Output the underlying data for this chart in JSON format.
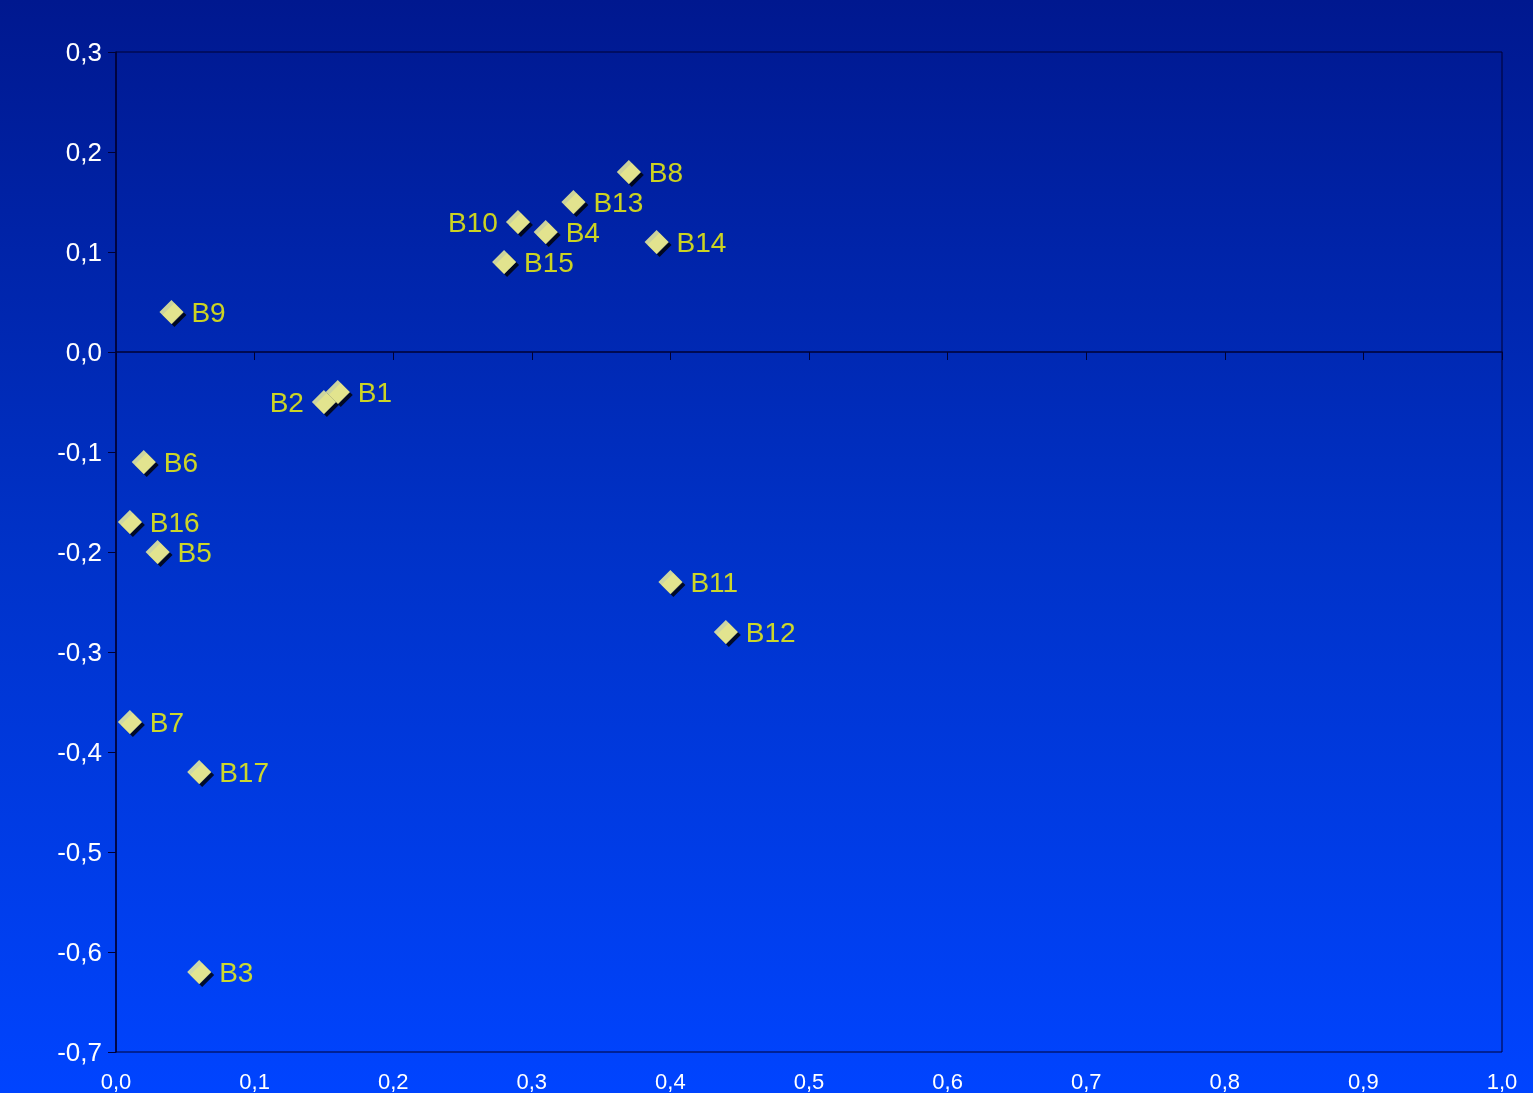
{
  "chart_data": {
    "type": "scatter",
    "marker": "diamond",
    "grid": false,
    "legend": false,
    "xlim": [
      0,
      1
    ],
    "xticks": [
      {
        "value": 0,
        "label": "0,0"
      },
      {
        "value": 0.1,
        "label": "0,1"
      },
      {
        "value": 0.2,
        "label": "0,2"
      },
      {
        "value": 0.3,
        "label": "0,3"
      },
      {
        "value": 0.4,
        "label": "0,4"
      },
      {
        "value": 0.5,
        "label": "0,5"
      },
      {
        "value": 0.6,
        "label": "0,6"
      },
      {
        "value": 0.7,
        "label": "0,7"
      },
      {
        "value": 0.8,
        "label": "0,8"
      },
      {
        "value": 0.9,
        "label": "0,9"
      },
      {
        "value": 1,
        "label": "1,0"
      }
    ],
    "ylim": [
      -0.7,
      0.3
    ],
    "yticks": [
      {
        "value": -0.7,
        "label": "-0,7"
      },
      {
        "value": -0.6,
        "label": "-0,6"
      },
      {
        "value": -0.5,
        "label": "-0,5"
      },
      {
        "value": -0.4,
        "label": "-0,4"
      },
      {
        "value": -0.3,
        "label": "-0,3"
      },
      {
        "value": -0.2,
        "label": "-0,2"
      },
      {
        "value": -0.1,
        "label": "-0,1"
      },
      {
        "value": 0,
        "label": "0,0"
      },
      {
        "value": 0.1,
        "label": "0,1"
      },
      {
        "value": 0.2,
        "label": "0,2"
      },
      {
        "value": 0.3,
        "label": "0,3"
      }
    ],
    "series": [
      {
        "name": "B1",
        "color": "#ffff99",
        "x": [
          0.16
        ],
        "values": [
          -0.04
        ]
      },
      {
        "name": "B2",
        "color": "#ffff99",
        "x": [
          0.15
        ],
        "values": [
          -0.05
        ]
      },
      {
        "name": "B3",
        "color": "#ffff99",
        "x": [
          0.06
        ],
        "values": [
          -0.62
        ]
      },
      {
        "name": "B4",
        "color": "#ffff99",
        "x": [
          0.31
        ],
        "values": [
          0.12
        ]
      },
      {
        "name": "B5",
        "color": "#ffff99",
        "x": [
          0.03
        ],
        "values": [
          -0.2
        ]
      },
      {
        "name": "B6",
        "color": "#ffff99",
        "x": [
          0.02
        ],
        "values": [
          -0.11
        ]
      },
      {
        "name": "B7",
        "color": "#ffff99",
        "x": [
          0.01
        ],
        "values": [
          -0.37
        ]
      },
      {
        "name": "B8",
        "color": "#ffff99",
        "x": [
          0.37
        ],
        "values": [
          0.18
        ]
      },
      {
        "name": "B9",
        "color": "#ffff99",
        "x": [
          0.04
        ],
        "values": [
          0.04
        ]
      },
      {
        "name": "B10",
        "color": "#ffff99",
        "x": [
          0.29
        ],
        "values": [
          0.13
        ]
      },
      {
        "name": "B11",
        "color": "#ffff99",
        "x": [
          0.4
        ],
        "values": [
          -0.23
        ]
      },
      {
        "name": "B12",
        "color": "#ffff99",
        "x": [
          0.44
        ],
        "values": [
          -0.28
        ]
      },
      {
        "name": "B13",
        "color": "#ffff99",
        "x": [
          0.33
        ],
        "values": [
          0.15
        ]
      },
      {
        "name": "B14",
        "color": "#ffff99",
        "x": [
          0.39
        ],
        "values": [
          0.11
        ]
      },
      {
        "name": "B15",
        "color": "#ffff99",
        "x": [
          0.28
        ],
        "values": [
          0.09
        ]
      },
      {
        "name": "B16",
        "color": "#ffff99",
        "x": [
          0.01
        ],
        "values": [
          -0.17
        ]
      },
      {
        "name": "B17",
        "color": "#ffff99",
        "x": [
          0.06
        ],
        "values": [
          -0.42
        ]
      }
    ]
  }
}
